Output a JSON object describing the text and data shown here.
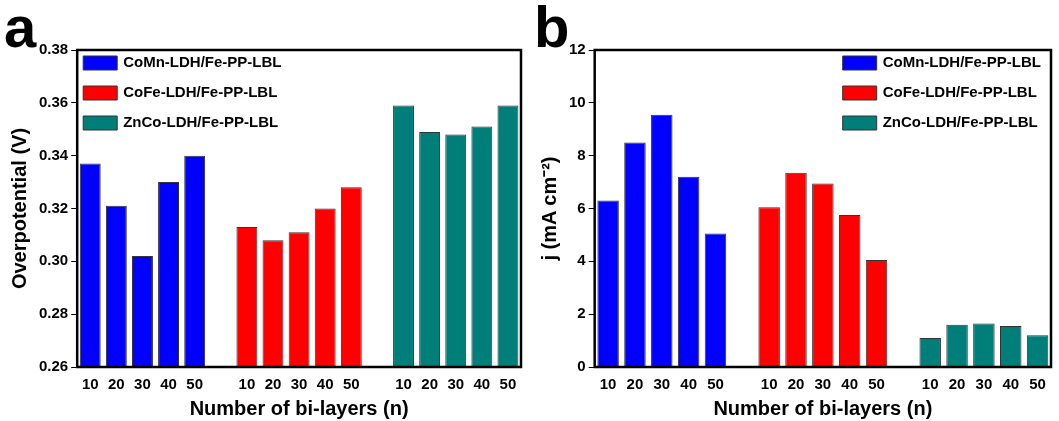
{
  "chart_data": [
    {
      "type": "bar",
      "title": "a",
      "xlabel": "Number of bi-layers (n)",
      "ylabel": "Overpotential (V)",
      "categories": [
        "10",
        "20",
        "30",
        "40",
        "50",
        null,
        "10",
        "20",
        "30",
        "40",
        "50",
        null,
        "10",
        "20",
        "30",
        "40",
        "50"
      ],
      "series": [
        {
          "name": "CoMn-LDH/Fe-PP-LBL",
          "color": "#0000ff",
          "values": [
            0.337,
            0.321,
            0.302,
            0.33,
            0.34,
            null,
            null,
            null,
            null,
            null,
            null,
            null,
            null,
            null,
            null,
            null,
            null
          ]
        },
        {
          "name": "CoFe-LDH/Fe-PP-LBL",
          "color": "#ff0000",
          "values": [
            null,
            null,
            null,
            null,
            null,
            null,
            0.313,
            0.308,
            0.311,
            0.32,
            0.328,
            null,
            null,
            null,
            null,
            null,
            null
          ]
        },
        {
          "name": "ZnCo-LDH/Fe-PP-LBL",
          "color": "#007f7a",
          "values": [
            null,
            null,
            null,
            null,
            null,
            null,
            null,
            null,
            null,
            null,
            null,
            null,
            0.359,
            0.349,
            0.348,
            0.351,
            0.359
          ]
        }
      ],
      "ylim": [
        0.26,
        0.38
      ],
      "yticks": [
        {
          "value": 0.26,
          "label": "0.26"
        },
        {
          "value": 0.28,
          "label": "0.28"
        },
        {
          "value": 0.3,
          "label": "0.30"
        },
        {
          "value": 0.32,
          "label": "0.32"
        },
        {
          "value": 0.34,
          "label": "0.34"
        },
        {
          "value": 0.36,
          "label": "0.36"
        },
        {
          "value": 0.38,
          "label": "0.38"
        }
      ],
      "grid": false,
      "legend": "top left"
    },
    {
      "type": "bar",
      "title": "b",
      "xlabel": "Number of bi-layers (n)",
      "ylabel": "j (mA cm⁻²)",
      "categories": [
        "10",
        "20",
        "30",
        "40",
        "50",
        null,
        "10",
        "20",
        "30",
        "40",
        "50",
        null,
        "10",
        "20",
        "30",
        "40",
        "50"
      ],
      "series": [
        {
          "name": "CoMn-LDH/Fe-PP-LBL",
          "color": "#0000ff",
          "values": [
            6.3,
            8.5,
            9.55,
            7.2,
            5.05,
            null,
            null,
            null,
            null,
            null,
            null,
            null,
            null,
            null,
            null,
            null,
            null
          ]
        },
        {
          "name": "CoFe-LDH/Fe-PP-LBL",
          "color": "#ff0000",
          "values": [
            null,
            null,
            null,
            null,
            null,
            null,
            6.05,
            7.35,
            6.95,
            5.75,
            4.05,
            null,
            null,
            null,
            null,
            null,
            null
          ]
        },
        {
          "name": "ZnCo-LDH/Fe-PP-LBL",
          "color": "#007f7a",
          "values": [
            null,
            null,
            null,
            null,
            null,
            null,
            null,
            null,
            null,
            null,
            null,
            null,
            1.1,
            1.6,
            1.65,
            1.55,
            1.2
          ]
        }
      ],
      "ylim": [
        0,
        12
      ],
      "yticks": [
        0,
        2,
        4,
        6,
        8,
        10,
        12
      ],
      "grid": false,
      "legend": "top right"
    }
  ]
}
